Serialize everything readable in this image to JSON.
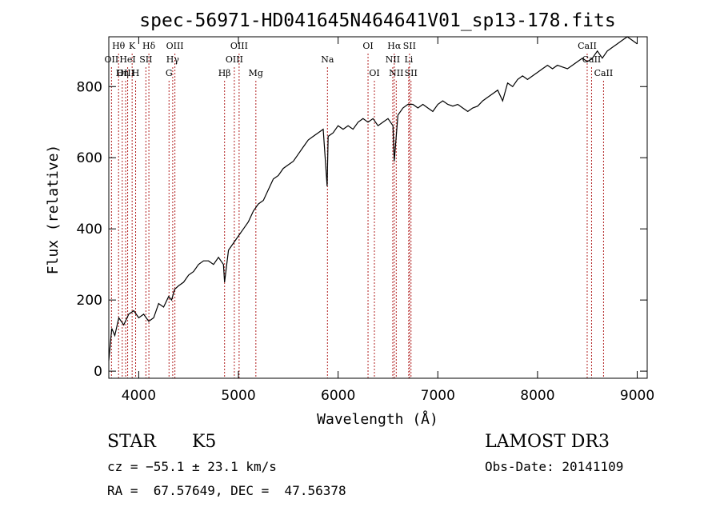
{
  "chart_data": {
    "type": "line",
    "title": "spec-56971-HD041645N464641V01_sp13-178.fits",
    "xlabel": "Wavelength (Å)",
    "ylabel": "Flux (relative)",
    "xlim": [
      3700,
      9100
    ],
    "ylim": [
      -20,
      940
    ],
    "x_ticks": [
      4000,
      5000,
      6000,
      7000,
      8000,
      9000
    ],
    "y_ticks": [
      0,
      200,
      400,
      600,
      800
    ],
    "grid": false,
    "series": [
      {
        "x": [
          3700,
          3730,
          3760,
          3800,
          3850,
          3900,
          3950,
          4000,
          4050,
          4100,
          4150,
          4200,
          4250,
          4300,
          4330,
          4360,
          4400,
          4450,
          4500,
          4550,
          4600,
          4650,
          4700,
          4750,
          4800,
          4850,
          4861,
          4900,
          4950,
          5000,
          5050,
          5100,
          5150,
          5200,
          5250,
          5300,
          5350,
          5400,
          5450,
          5500,
          5550,
          5600,
          5650,
          5700,
          5750,
          5800,
          5850,
          5890,
          5900,
          5950,
          6000,
          6050,
          6100,
          6150,
          6200,
          6250,
          6300,
          6350,
          6400,
          6450,
          6500,
          6550,
          6563,
          6600,
          6650,
          6700,
          6750,
          6800,
          6850,
          6900,
          6950,
          7000,
          7050,
          7100,
          7150,
          7200,
          7250,
          7300,
          7350,
          7400,
          7450,
          7500,
          7550,
          7600,
          7650,
          7700,
          7750,
          7800,
          7850,
          7900,
          7950,
          8000,
          8050,
          8100,
          8150,
          8200,
          8250,
          8300,
          8350,
          8400,
          8450,
          8500,
          8550,
          8600,
          8650,
          8700,
          8750,
          8800,
          8850,
          8900,
          8950,
          9000
        ],
        "y": [
          30,
          120,
          100,
          150,
          130,
          160,
          170,
          150,
          160,
          140,
          150,
          190,
          180,
          210,
          200,
          230,
          240,
          250,
          270,
          280,
          300,
          310,
          310,
          300,
          320,
          300,
          250,
          340,
          360,
          380,
          400,
          420,
          450,
          470,
          480,
          510,
          540,
          550,
          570,
          580,
          590,
          610,
          630,
          650,
          660,
          670,
          680,
          520,
          660,
          670,
          690,
          680,
          690,
          680,
          700,
          710,
          700,
          710,
          690,
          700,
          710,
          690,
          590,
          720,
          740,
          750,
          750,
          740,
          750,
          740,
          730,
          750,
          760,
          750,
          745,
          750,
          740,
          730,
          740,
          745,
          760,
          770,
          780,
          790,
          760,
          810,
          800,
          820,
          830,
          820,
          830,
          840,
          850,
          860,
          850,
          860,
          855,
          850,
          860,
          870,
          880,
          870,
          880,
          900,
          880,
          900,
          910,
          920,
          930,
          940,
          930,
          920
        ]
      }
    ],
    "lines": [
      {
        "label": "Hθ",
        "x": 3798,
        "row": 1
      },
      {
        "label": "OII",
        "x": 3727,
        "row": 2
      },
      {
        "label": "OIII",
        "x": 3869,
        "row": 3
      },
      {
        "label": "Hη",
        "x": 3835,
        "row": 3
      },
      {
        "label": "K",
        "x": 3934,
        "row": 1
      },
      {
        "label": "HeI",
        "x": 3889,
        "row": 2
      },
      {
        "label": "H",
        "x": 3969,
        "row": 3
      },
      {
        "label": "Hδ",
        "x": 4102,
        "row": 1
      },
      {
        "label": "SII",
        "x": 4072,
        "row": 2
      },
      {
        "label": "OIII",
        "x": 4363,
        "row": 1
      },
      {
        "label": "Hγ",
        "x": 4341,
        "row": 2
      },
      {
        "label": "G",
        "x": 4304,
        "row": 3
      },
      {
        "label": "OIII",
        "x": 5007,
        "row": 1
      },
      {
        "label": "OIII",
        "x": 4959,
        "row": 2
      },
      {
        "label": "Hβ",
        "x": 4861,
        "row": 3
      },
      {
        "label": "Mg",
        "x": 5175,
        "row": 3
      },
      {
        "label": "Na",
        "x": 5893,
        "row": 2
      },
      {
        "label": "OI",
        "x": 6300,
        "row": 1
      },
      {
        "label": "OI",
        "x": 6364,
        "row": 3
      },
      {
        "label": "Hα",
        "x": 6563,
        "row": 1
      },
      {
        "label": "SII",
        "x": 6716,
        "row": 1
      },
      {
        "label": "NII",
        "x": 6548,
        "row": 2
      },
      {
        "label": "Li",
        "x": 6708,
        "row": 2
      },
      {
        "label": "NII",
        "x": 6583,
        "row": 3
      },
      {
        "label": "SII",
        "x": 6731,
        "row": 3
      },
      {
        "label": "CaII",
        "x": 8498,
        "row": 1
      },
      {
        "label": "CaII",
        "x": 8542,
        "row": 2
      },
      {
        "label": "CaII",
        "x": 8662,
        "row": 3
      }
    ]
  },
  "info": {
    "class": "STAR",
    "subclass": "K5",
    "survey": "LAMOST DR3",
    "cz": "cz = −55.1 ± 23.1 km/s",
    "obs_date": "Obs-Date: 20141109",
    "radec": "RA =  67.57649, DEC =  47.56378"
  },
  "colors": {
    "spectrum": "#000000",
    "line_marker": "#b22222",
    "axes": "#000000"
  }
}
